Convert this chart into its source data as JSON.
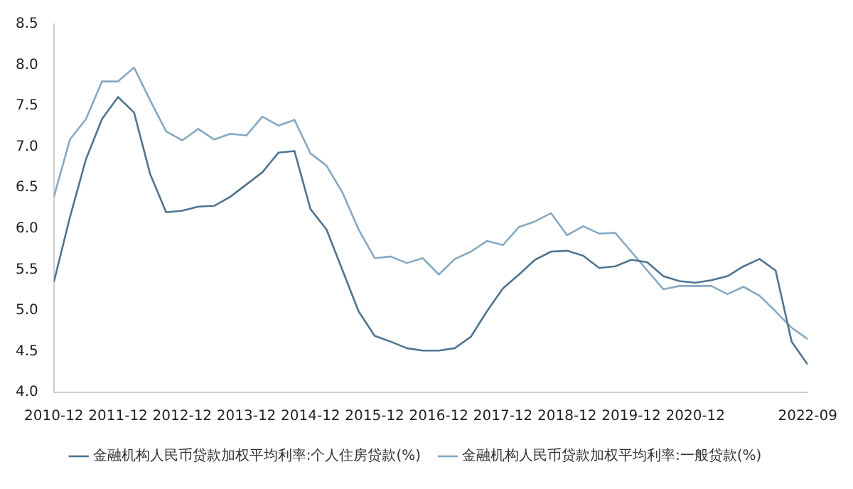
{
  "chart_data": {
    "type": "line",
    "x": [
      "2010-12",
      "2011-03",
      "2011-06",
      "2011-09",
      "2011-12",
      "2012-03",
      "2012-06",
      "2012-09",
      "2012-12",
      "2013-03",
      "2013-06",
      "2013-09",
      "2013-12",
      "2014-03",
      "2014-06",
      "2014-09",
      "2014-12",
      "2015-03",
      "2015-06",
      "2015-09",
      "2015-12",
      "2016-03",
      "2016-06",
      "2016-09",
      "2016-12",
      "2017-03",
      "2017-06",
      "2017-09",
      "2017-12",
      "2018-03",
      "2018-06",
      "2018-09",
      "2018-12",
      "2019-03",
      "2019-06",
      "2019-09",
      "2019-12",
      "2020-03",
      "2020-06",
      "2020-09",
      "2020-12",
      "2021-03",
      "2021-06",
      "2021-09",
      "2021-12",
      "2022-03",
      "2022-06",
      "2022-09"
    ],
    "series": [
      {
        "name": "金融机构人民币贷款加权平均利率:个人住房贷款(%)",
        "color": "#4f7590",
        "values": [
          5.35,
          6.14,
          6.85,
          7.34,
          7.61,
          7.42,
          6.67,
          6.2,
          6.22,
          6.27,
          6.28,
          6.39,
          6.54,
          6.69,
          6.93,
          6.95,
          6.24,
          5.99,
          5.49,
          4.99,
          4.69,
          4.62,
          4.54,
          4.51,
          4.51,
          4.54,
          4.68,
          4.99,
          5.27,
          5.44,
          5.62,
          5.72,
          5.73,
          5.67,
          5.52,
          5.54,
          5.62,
          5.59,
          5.42,
          5.36,
          5.34,
          5.37,
          5.42,
          5.54,
          5.63,
          5.49,
          4.62,
          4.34
        ]
      },
      {
        "name": "金融机构人民币贷款加权平均利率:一般贷款(%)",
        "color": "#86a9c2",
        "values": [
          6.39,
          7.09,
          7.34,
          7.8,
          7.8,
          7.97,
          7.57,
          7.19,
          7.08,
          7.22,
          7.09,
          7.16,
          7.14,
          7.37,
          7.26,
          7.33,
          6.92,
          6.77,
          6.44,
          5.99,
          5.64,
          5.66,
          5.58,
          5.64,
          5.44,
          5.63,
          5.72,
          5.85,
          5.8,
          6.02,
          6.09,
          6.19,
          5.92,
          6.03,
          5.94,
          5.95,
          5.72,
          5.49,
          5.26,
          5.3,
          5.3,
          5.3,
          5.2,
          5.29,
          5.18,
          4.99,
          4.79,
          4.65
        ]
      }
    ],
    "xlim": [
      "2010-12",
      "2022-09"
    ],
    "xticks": [
      "2010-12",
      "2011-12",
      "2012-12",
      "2013-12",
      "2014-12",
      "2015-12",
      "2016-12",
      "2017-12",
      "2018-12",
      "2019-12",
      "2020-12",
      "2022-09"
    ],
    "ylim": [
      4,
      8.5
    ],
    "yticks": [
      {
        "value": 4,
        "label": "4.0"
      },
      {
        "value": 4.5,
        "label": "4.5"
      },
      {
        "value": 5,
        "label": "5.0"
      },
      {
        "value": 5.5,
        "label": "5.5"
      },
      {
        "value": 6,
        "label": "6.0"
      },
      {
        "value": 6.5,
        "label": "6.5"
      },
      {
        "value": 7,
        "label": "7.0"
      },
      {
        "value": 7.5,
        "label": "7.5"
      },
      {
        "value": 8,
        "label": "8.0"
      },
      {
        "value": 8.5,
        "label": "8.5"
      }
    ],
    "grid": false,
    "legend": "bottom",
    "marker": "none",
    "line_style": "solid"
  }
}
